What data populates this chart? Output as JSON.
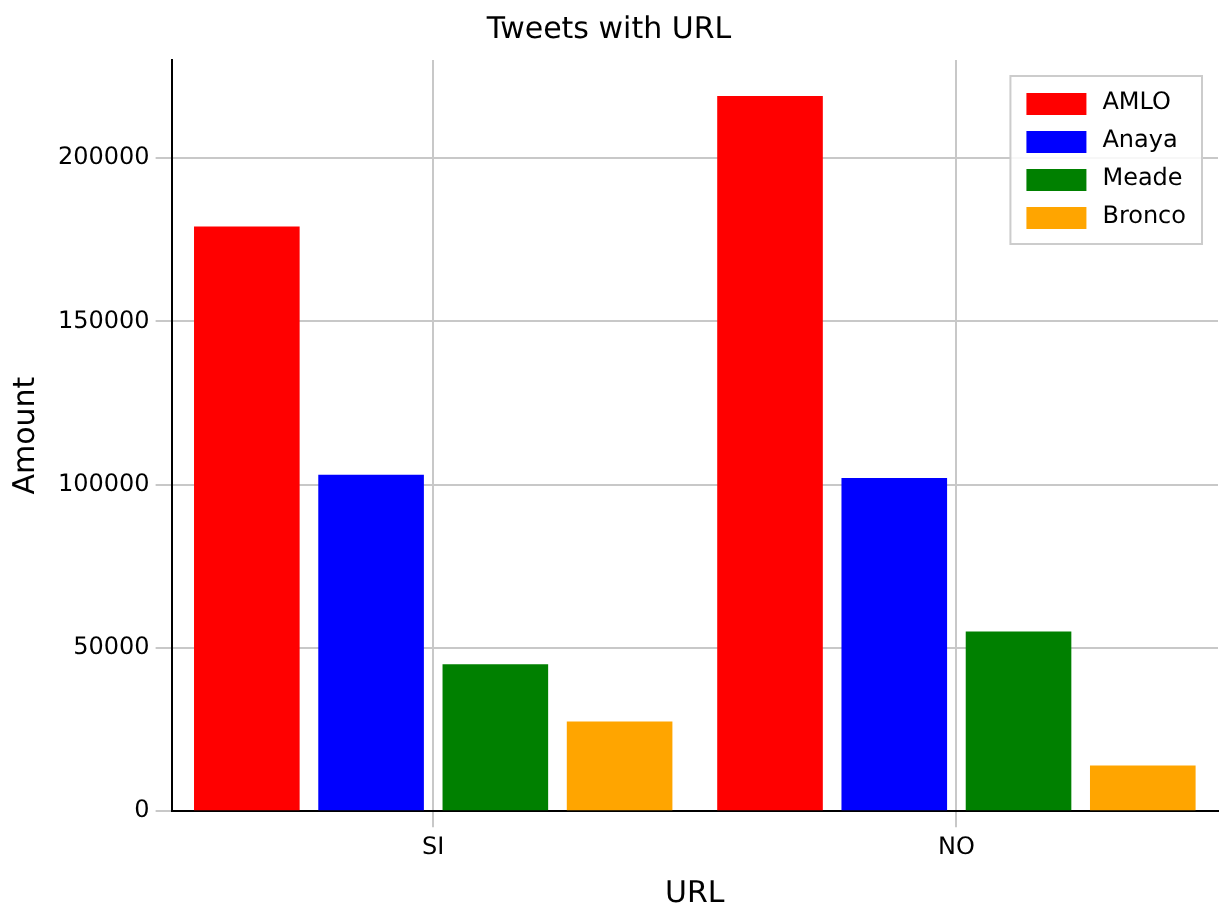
{
  "chart_data": {
    "type": "bar",
    "title": "Tweets with URL",
    "xlabel": "URL",
    "ylabel": "Amount",
    "categories": [
      "SI",
      "NO"
    ],
    "series": [
      {
        "name": "AMLO",
        "color": "#ff0000",
        "values": [
          179000,
          219000
        ]
      },
      {
        "name": "Anaya",
        "color": "#0000ff",
        "values": [
          103000,
          102000
        ]
      },
      {
        "name": "Meade",
        "color": "#008000",
        "values": [
          45000,
          55000
        ]
      },
      {
        "name": "Bronco",
        "color": "#ffa500",
        "values": [
          27500,
          14000
        ]
      }
    ],
    "ylim": [
      0,
      230000
    ],
    "yticks": [
      0,
      50000,
      100000,
      150000,
      200000
    ],
    "grid": true,
    "legend": "top right"
  }
}
